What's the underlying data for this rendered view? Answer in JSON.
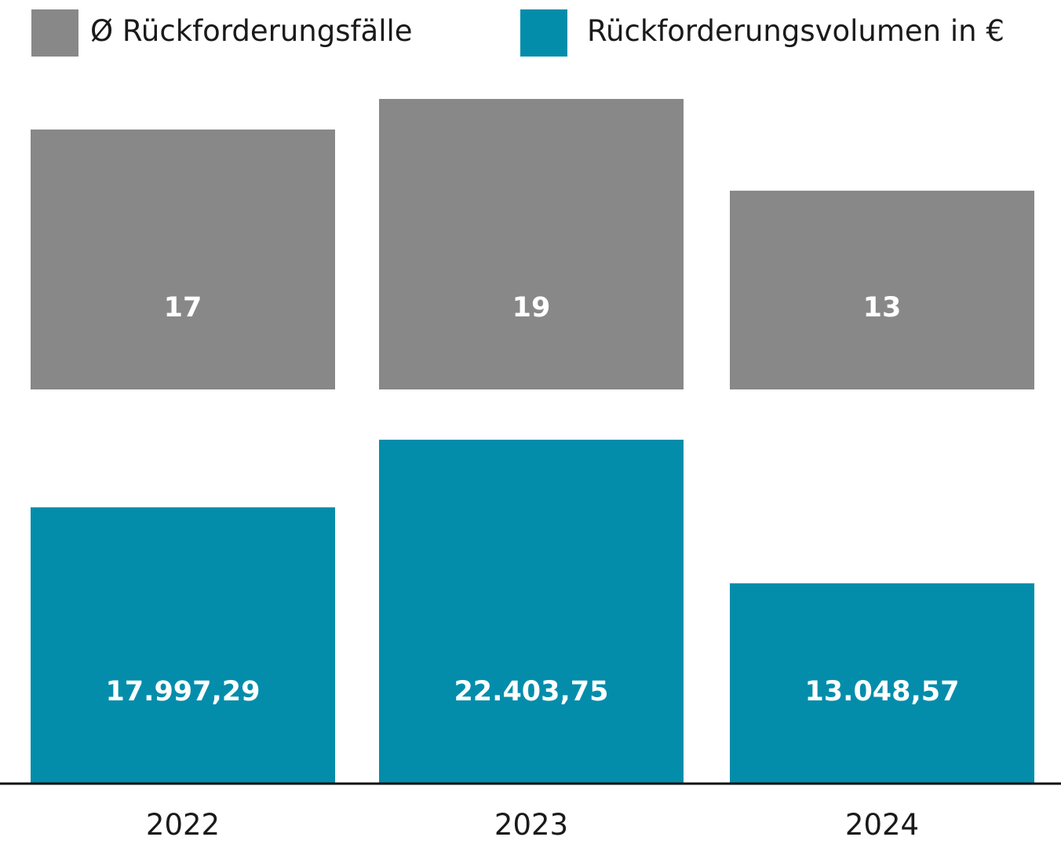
{
  "chart_data": {
    "type": "bar",
    "categories": [
      "2022",
      "2023",
      "2024"
    ],
    "series": [
      {
        "name": "Ø Rückforderungsfälle",
        "color": "#888888",
        "values": [
          17,
          19,
          13
        ],
        "labels": [
          "17",
          "19",
          "13"
        ]
      },
      {
        "name": "Rückforderungsvolumen in €",
        "color": "#038dab",
        "values": [
          17997.29,
          22403.75,
          13048.57
        ],
        "labels": [
          "17.997,29",
          "22.403,75",
          "13.048,57"
        ]
      }
    ],
    "legend_position": "top",
    "grid": false
  }
}
